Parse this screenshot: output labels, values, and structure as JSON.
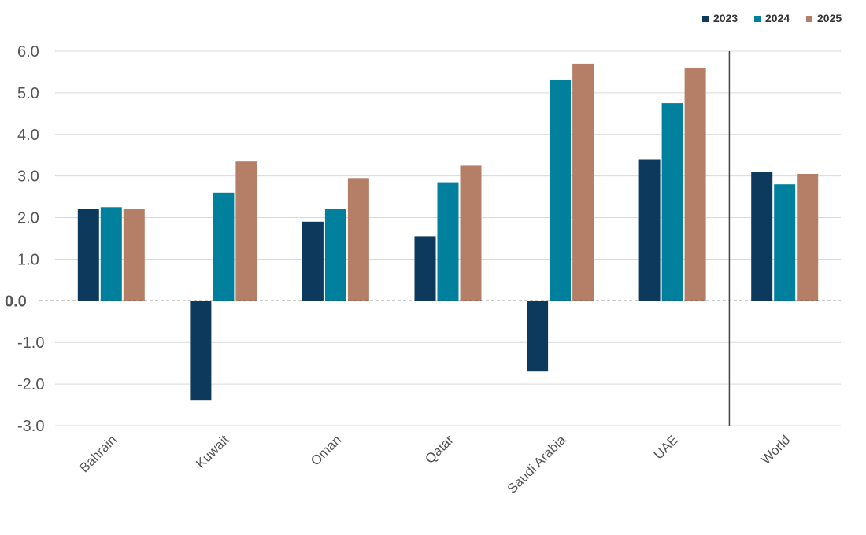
{
  "chart_data": {
    "type": "bar",
    "categories": [
      "Bahrain",
      "Kuwait",
      "Oman",
      "Qatar",
      "Saudi Arabia",
      "UAE",
      "World"
    ],
    "series": [
      {
        "name": "2023",
        "color": "#0d3a5c",
        "values": [
          2.2,
          -2.4,
          1.9,
          1.55,
          -1.7,
          3.4,
          3.1
        ]
      },
      {
        "name": "2024",
        "color": "#00809d",
        "values": [
          2.25,
          2.6,
          2.2,
          2.85,
          5.3,
          4.75,
          2.8
        ]
      },
      {
        "name": "2025",
        "color": "#b57f67",
        "values": [
          2.2,
          3.35,
          2.95,
          3.25,
          5.7,
          5.6,
          3.05
        ]
      }
    ],
    "yticks": [
      "6.0",
      "5.0",
      "4.0",
      "3.0",
      "2.0",
      "1.0",
      "0.0",
      "-1.0",
      "-2.0",
      "-3.0"
    ],
    "ytick_values": [
      6,
      5,
      4,
      3,
      2,
      1,
      0,
      -1,
      -2,
      -3
    ],
    "ylim": [
      -3,
      6
    ],
    "grid": true,
    "zero_line": "dashed",
    "legend_position": "top-right",
    "separator_before_category": "World",
    "title": "",
    "xlabel": "",
    "ylabel": ""
  }
}
